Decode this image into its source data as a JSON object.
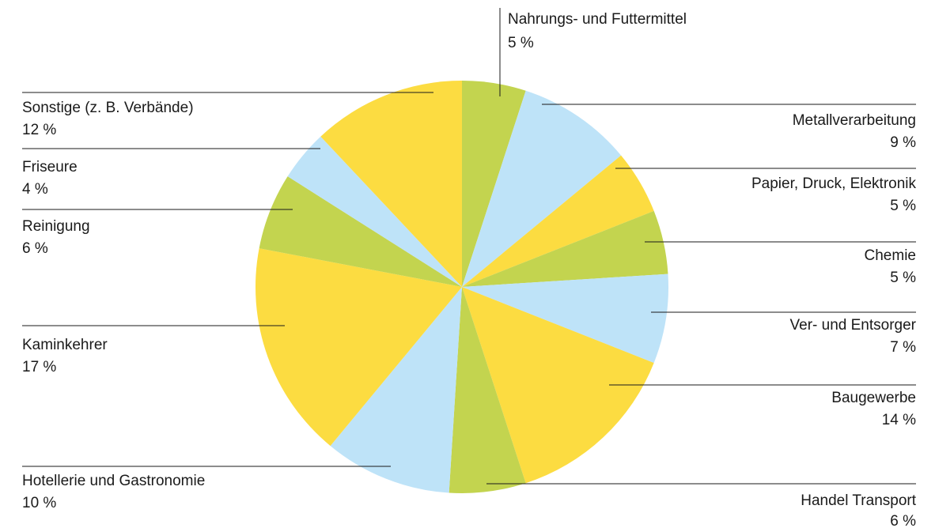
{
  "chart_data": {
    "type": "pie",
    "categories": [
      "Nahrungs- und Futtermittel",
      "Metallverarbeitung",
      "Papier, Druck, Elektronik",
      "Chemie",
      "Ver- und Entsorger",
      "Baugewerbe",
      "Handel Transport",
      "Hotellerie und Gastronomie",
      "Kaminkehrer",
      "Reinigung",
      "Friseure",
      "Sonstige (z. B. Verbände)"
    ],
    "values": [
      5,
      9,
      5,
      5,
      7,
      14,
      6,
      10,
      17,
      6,
      4,
      12
    ],
    "value_labels": [
      "5 %",
      "9 %",
      "5 %",
      "5 %",
      "7 %",
      "14 %",
      "6 %",
      "10 %",
      "17 %",
      "6 %",
      "4 %",
      "12 %"
    ],
    "colors": [
      "#c3d44f",
      "#bee3f8",
      "#fcdc41",
      "#c3d44f",
      "#bee3f8",
      "#fcdc41",
      "#c3d44f",
      "#bee3f8",
      "#fcdc41",
      "#c3d44f",
      "#bee3f8",
      "#fcdc41"
    ]
  }
}
